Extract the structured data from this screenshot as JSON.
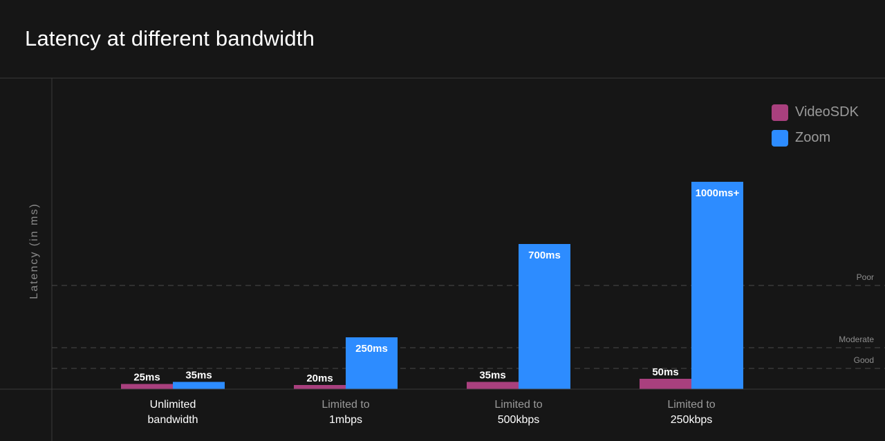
{
  "title": "Latency at different bandwidth",
  "chart_data": {
    "type": "bar",
    "title": "Latency at different bandwidth",
    "xlabel": "",
    "ylabel": "Latency (in ms)",
    "categories": [
      [
        "Unlimited",
        "bandwidth"
      ],
      [
        "Limited to",
        "1mbps"
      ],
      [
        "Limited to",
        "500kbps"
      ],
      [
        "Limited to",
        "250kbps"
      ]
    ],
    "series": [
      {
        "name": "VideoSDK",
        "color": "#a9407e",
        "values": [
          25,
          20,
          35,
          50
        ],
        "labels": [
          "25ms",
          "20ms",
          "35ms",
          "50ms"
        ]
      },
      {
        "name": "Zoom",
        "color": "#2d8cff",
        "values": [
          35,
          250,
          700,
          1000
        ],
        "labels": [
          "35ms",
          "250ms",
          "700ms",
          "1000ms+"
        ]
      }
    ],
    "thresholds": [
      {
        "label": "Good",
        "value": 100
      },
      {
        "label": "Moderate",
        "value": 200
      },
      {
        "label": "Poor",
        "value": 500
      }
    ],
    "ylim": [
      0,
      1000
    ],
    "grid": false,
    "legend_position": "top-right"
  }
}
